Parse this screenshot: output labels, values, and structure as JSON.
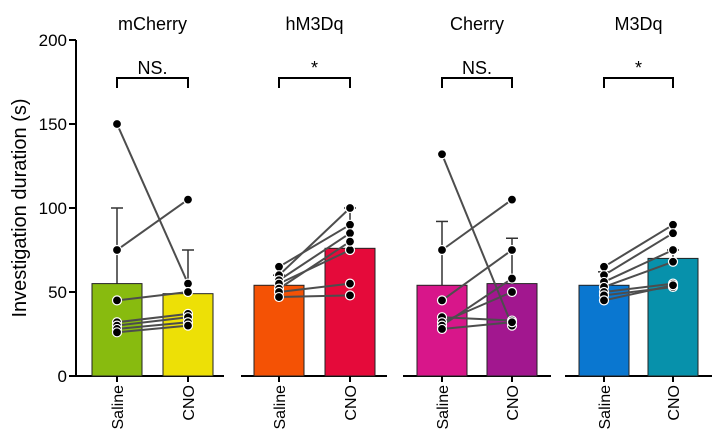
{
  "chart_data": {
    "type": "bar",
    "ylabel": "Investigation duration (s)",
    "ylim": [
      0,
      200
    ],
    "yticks": [
      0,
      50,
      100,
      150,
      200
    ],
    "categories": [
      "Saline",
      "CNO"
    ],
    "panels": [
      {
        "title": "mCherry",
        "significance": "NS.",
        "colors": [
          "#88bb0f",
          "#ede006"
        ],
        "means": [
          55,
          49
        ],
        "errors": [
          45,
          26
        ],
        "pairs": [
          [
            150,
            55
          ],
          [
            75,
            105
          ],
          [
            45,
            50
          ],
          [
            32,
            37
          ],
          [
            30,
            35
          ],
          [
            28,
            32
          ],
          [
            26,
            30
          ]
        ]
      },
      {
        "title": "hM3Dq",
        "significance": "*",
        "colors": [
          "#f45205",
          "#e50a3a"
        ],
        "means": [
          54,
          76
        ],
        "errors": [
          6,
          24
        ],
        "pairs": [
          [
            65,
            90
          ],
          [
            60,
            100
          ],
          [
            57,
            85
          ],
          [
            55,
            75
          ],
          [
            52,
            80
          ],
          [
            50,
            55
          ],
          [
            47,
            48
          ]
        ]
      },
      {
        "title": "Cherry",
        "significance": "NS.",
        "colors": [
          "#d8168a",
          "#a2178f"
        ],
        "means": [
          54,
          55
        ],
        "errors": [
          38,
          27
        ],
        "pairs": [
          [
            132,
            30
          ],
          [
            75,
            105
          ],
          [
            45,
            75
          ],
          [
            35,
            33
          ],
          [
            32,
            50
          ],
          [
            30,
            58
          ],
          [
            28,
            32
          ]
        ]
      },
      {
        "title": "M3Dq",
        "significance": "*",
        "colors": [
          "#0a77d0",
          "#0791ab"
        ],
        "means": [
          54,
          70
        ],
        "errors": [
          8,
          5
        ],
        "pairs": [
          [
            65,
            90
          ],
          [
            60,
            85
          ],
          [
            56,
            75
          ],
          [
            53,
            68
          ],
          [
            50,
            55
          ],
          [
            48,
            53
          ],
          [
            45,
            54
          ]
        ]
      }
    ]
  }
}
